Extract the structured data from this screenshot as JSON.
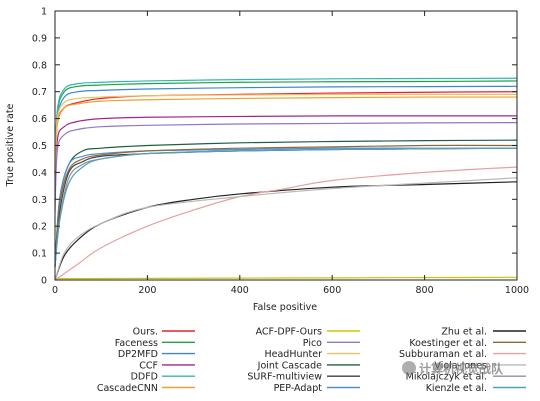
{
  "chart_data": {
    "type": "line",
    "xlabel": "False positive",
    "ylabel": "True positive rate",
    "xlim": [
      0,
      1000
    ],
    "ylim": [
      0,
      1
    ],
    "xticks": [
      "0",
      "200",
      "400",
      "600",
      "800",
      "1000"
    ],
    "yticks": [
      "0",
      "0.1",
      "0.2",
      "0.3",
      "0.4",
      "0.5",
      "0.6",
      "0.7",
      "0.8",
      "0.9",
      "1"
    ],
    "grid": false,
    "legend_position": "bottom",
    "series": [
      {
        "name": "Ours.",
        "color": "#e8202a",
        "x": [
          0,
          5,
          20,
          50,
          100,
          200,
          400,
          600,
          800,
          1000
        ],
        "y": [
          0.4,
          0.58,
          0.64,
          0.66,
          0.675,
          0.685,
          0.69,
          0.695,
          0.698,
          0.7
        ]
      },
      {
        "name": "Faceness",
        "color": "#22a04a",
        "x": [
          0,
          5,
          20,
          50,
          100,
          200,
          400,
          600,
          800,
          1000
        ],
        "y": [
          0.4,
          0.62,
          0.7,
          0.72,
          0.725,
          0.73,
          0.735,
          0.737,
          0.738,
          0.74
        ]
      },
      {
        "name": "DP2MFD",
        "color": "#3a88d0",
        "x": [
          0,
          5,
          20,
          50,
          100,
          200,
          400,
          600,
          800,
          1000
        ],
        "y": [
          0.4,
          0.6,
          0.68,
          0.7,
          0.705,
          0.71,
          0.715,
          0.718,
          0.719,
          0.72
        ]
      },
      {
        "name": "CCF",
        "color": "#a0288a",
        "x": [
          0,
          5,
          20,
          50,
          100,
          200,
          400,
          600,
          800,
          1000
        ],
        "y": [
          0.3,
          0.52,
          0.57,
          0.59,
          0.6,
          0.605,
          0.608,
          0.61,
          0.61,
          0.61
        ]
      },
      {
        "name": "DDFD",
        "color": "#30b8b0",
        "x": [
          0,
          5,
          20,
          50,
          100,
          200,
          400,
          600,
          800,
          1000
        ],
        "y": [
          0.4,
          0.63,
          0.71,
          0.73,
          0.735,
          0.74,
          0.745,
          0.748,
          0.749,
          0.75
        ]
      },
      {
        "name": "CascadeCNN",
        "color": "#f0a030",
        "x": [
          0,
          5,
          20,
          50,
          100,
          200,
          400,
          600,
          800,
          1000
        ],
        "y": [
          0.35,
          0.58,
          0.64,
          0.655,
          0.665,
          0.67,
          0.675,
          0.678,
          0.68,
          0.68
        ]
      },
      {
        "name": "ACF-DPF-Ours",
        "color": "#c8c800",
        "x": [
          0,
          200,
          400,
          600,
          800,
          1000
        ],
        "y": [
          0.005,
          0.006,
          0.007,
          0.008,
          0.009,
          0.01
        ]
      },
      {
        "name": "Pico",
        "color": "#9078c8",
        "x": [
          0,
          5,
          20,
          50,
          100,
          200,
          400,
          600,
          800,
          1000
        ],
        "y": [
          0.25,
          0.48,
          0.54,
          0.56,
          0.57,
          0.575,
          0.58,
          0.582,
          0.584,
          0.585
        ]
      },
      {
        "name": "HeadHunter",
        "color": "#f0c060",
        "x": [
          0,
          5,
          20,
          50,
          100,
          200,
          400,
          600,
          800,
          1000
        ],
        "y": [
          0.4,
          0.6,
          0.66,
          0.675,
          0.68,
          0.685,
          0.688,
          0.69,
          0.69,
          0.69
        ]
      },
      {
        "name": "Joint Cascade",
        "color": "#206040",
        "x": [
          0,
          10,
          30,
          60,
          100,
          200,
          400,
          600,
          800,
          1000
        ],
        "y": [
          0.05,
          0.3,
          0.43,
          0.48,
          0.49,
          0.5,
          0.51,
          0.515,
          0.518,
          0.52
        ]
      },
      {
        "name": "SURF-multiview",
        "color": "#404040",
        "x": [
          0,
          10,
          30,
          60,
          100,
          200,
          400,
          600,
          800,
          1000
        ],
        "y": [
          0.05,
          0.25,
          0.4,
          0.44,
          0.46,
          0.47,
          0.48,
          0.485,
          0.488,
          0.49
        ]
      },
      {
        "name": "PEP-Adapt",
        "color": "#5090d8",
        "x": [
          0,
          10,
          30,
          60,
          100,
          200,
          400,
          600,
          800,
          1000
        ],
        "y": [
          0.05,
          0.3,
          0.43,
          0.46,
          0.47,
          0.48,
          0.485,
          0.49,
          0.49,
          0.49
        ]
      },
      {
        "name": "Zhu et al.",
        "color": "#202020",
        "x": [
          0,
          20,
          50,
          100,
          200,
          300,
          400,
          600,
          800,
          1000
        ],
        "y": [
          0.0,
          0.09,
          0.15,
          0.21,
          0.27,
          0.3,
          0.32,
          0.345,
          0.355,
          0.365
        ]
      },
      {
        "name": "Koestinger et al.",
        "color": "#8a6a3a",
        "x": [
          0,
          10,
          30,
          60,
          100,
          200,
          400,
          600,
          800,
          1000
        ],
        "y": [
          0.05,
          0.28,
          0.41,
          0.45,
          0.465,
          0.48,
          0.49,
          0.495,
          0.5,
          0.5
        ]
      },
      {
        "name": "Subburaman et al.",
        "color": "#e8a0a0",
        "x": [
          0,
          50,
          100,
          200,
          300,
          400,
          500,
          600,
          800,
          1000
        ],
        "y": [
          0.0,
          0.06,
          0.12,
          0.2,
          0.26,
          0.31,
          0.34,
          0.37,
          0.4,
          0.42
        ]
      },
      {
        "name": "Viola-Jones",
        "color": "#b8b8b8",
        "x": [
          0,
          20,
          50,
          100,
          200,
          400,
          600,
          800,
          1000
        ],
        "y": [
          0.0,
          0.1,
          0.16,
          0.21,
          0.27,
          0.31,
          0.34,
          0.36,
          0.38
        ]
      },
      {
        "name": "Mikolajczyk et al.",
        "color": "#9090a0",
        "x": [
          0,
          10,
          30,
          60,
          100,
          200,
          400,
          600,
          800,
          1000
        ],
        "y": [
          0.05,
          0.22,
          0.38,
          0.43,
          0.45,
          0.47,
          0.48,
          0.485,
          0.488,
          0.49
        ]
      },
      {
        "name": "Kienzle et al.",
        "color": "#50a0c0",
        "x": [
          0,
          10,
          30,
          60,
          100,
          200,
          400,
          600,
          800,
          1000
        ],
        "y": [
          0.05,
          0.22,
          0.36,
          0.42,
          0.45,
          0.47,
          0.48,
          0.485,
          0.488,
          0.49
        ]
      }
    ]
  },
  "watermark": {
    "text": "计算机视觉战队"
  }
}
